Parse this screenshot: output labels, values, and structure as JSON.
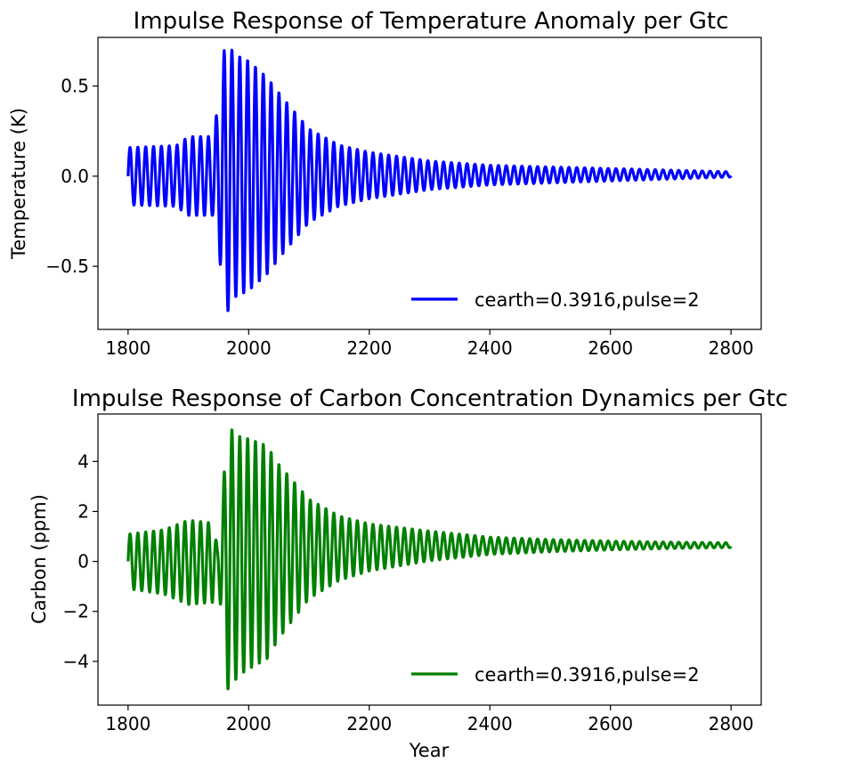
{
  "chart_data": [
    {
      "type": "line",
      "title": "Impulse Response of Temperature Anomaly per Gtc",
      "xlabel": "",
      "ylabel": "Temperature (K)",
      "xlim": [
        1750,
        2850
      ],
      "ylim": [
        -0.85,
        0.77
      ],
      "x_ticks": [
        1800,
        2000,
        2200,
        2400,
        2600,
        2800
      ],
      "x_tick_labels": [
        "1800",
        "2000",
        "2200",
        "2400",
        "2600",
        "2800"
      ],
      "y_ticks": [
        -0.5,
        0.0,
        0.5
      ],
      "y_tick_labels": [
        "−0.5",
        "0.0",
        "0.5"
      ],
      "grid": false,
      "legend": {
        "placement": "lower-right",
        "frame": false
      },
      "series": [
        {
          "name": "cearth=0.3916,pulse=2",
          "color": "#0000ff",
          "oscillation_period_years": 13,
          "baseline": [
            [
              1800,
              0.0
            ],
            [
              2800,
              0.01
            ]
          ],
          "envelope": [
            [
              1800,
              0.16
            ],
            [
              1880,
              0.17
            ],
            [
              1900,
              0.22
            ],
            [
              1940,
              0.22
            ],
            [
              1950,
              0.4
            ],
            [
              1962,
              0.78
            ],
            [
              1975,
              0.68
            ],
            [
              2000,
              0.64
            ],
            [
              2030,
              0.55
            ],
            [
              2060,
              0.42
            ],
            [
              2100,
              0.26
            ],
            [
              2150,
              0.17
            ],
            [
              2200,
              0.13
            ],
            [
              2300,
              0.08
            ],
            [
              2400,
              0.055
            ],
            [
              2500,
              0.045
            ],
            [
              2600,
              0.035
            ],
            [
              2700,
              0.025
            ],
            [
              2800,
              0.015
            ]
          ]
        }
      ]
    },
    {
      "type": "line",
      "title": "Impulse Response of Carbon Concentration Dynamics per Gtc",
      "xlabel": "Year",
      "ylabel": "Carbon (ppm)",
      "xlim": [
        1750,
        2850
      ],
      "ylim": [
        -5.75,
        5.9
      ],
      "x_ticks": [
        1800,
        2000,
        2200,
        2400,
        2600,
        2800
      ],
      "x_tick_labels": [
        "1800",
        "2000",
        "2200",
        "2400",
        "2600",
        "2800"
      ],
      "y_ticks": [
        -4,
        -2,
        0,
        2,
        4
      ],
      "y_tick_labels": [
        "−4",
        "−2",
        "0",
        "2",
        "4"
      ],
      "grid": false,
      "legend": {
        "placement": "lower-right",
        "frame": false
      },
      "series": [
        {
          "name": "cearth=0.3916,pulse=2",
          "color": "#008000",
          "oscillation_period_years": 13,
          "baseline": [
            [
              1800,
              0.0
            ],
            [
              1940,
              -0.05
            ],
            [
              1955,
              0.1
            ],
            [
              2000,
              0.3
            ],
            [
              2100,
              0.5
            ],
            [
              2300,
              0.62
            ],
            [
              2800,
              0.65
            ]
          ],
          "envelope": [
            [
              1800,
              1.1
            ],
            [
              1860,
              1.3
            ],
            [
              1900,
              1.7
            ],
            [
              1940,
              1.6
            ],
            [
              1948,
              0.6
            ],
            [
              1958,
              3.0
            ],
            [
              1965,
              5.3
            ],
            [
              1985,
              4.8
            ],
            [
              2030,
              4.3
            ],
            [
              2050,
              3.5
            ],
            [
              2100,
              2.0
            ],
            [
              2150,
              1.3
            ],
            [
              2200,
              0.95
            ],
            [
              2300,
              0.6
            ],
            [
              2400,
              0.35
            ],
            [
              2500,
              0.25
            ],
            [
              2600,
              0.18
            ],
            [
              2700,
              0.13
            ],
            [
              2800,
              0.1
            ]
          ]
        }
      ]
    }
  ]
}
